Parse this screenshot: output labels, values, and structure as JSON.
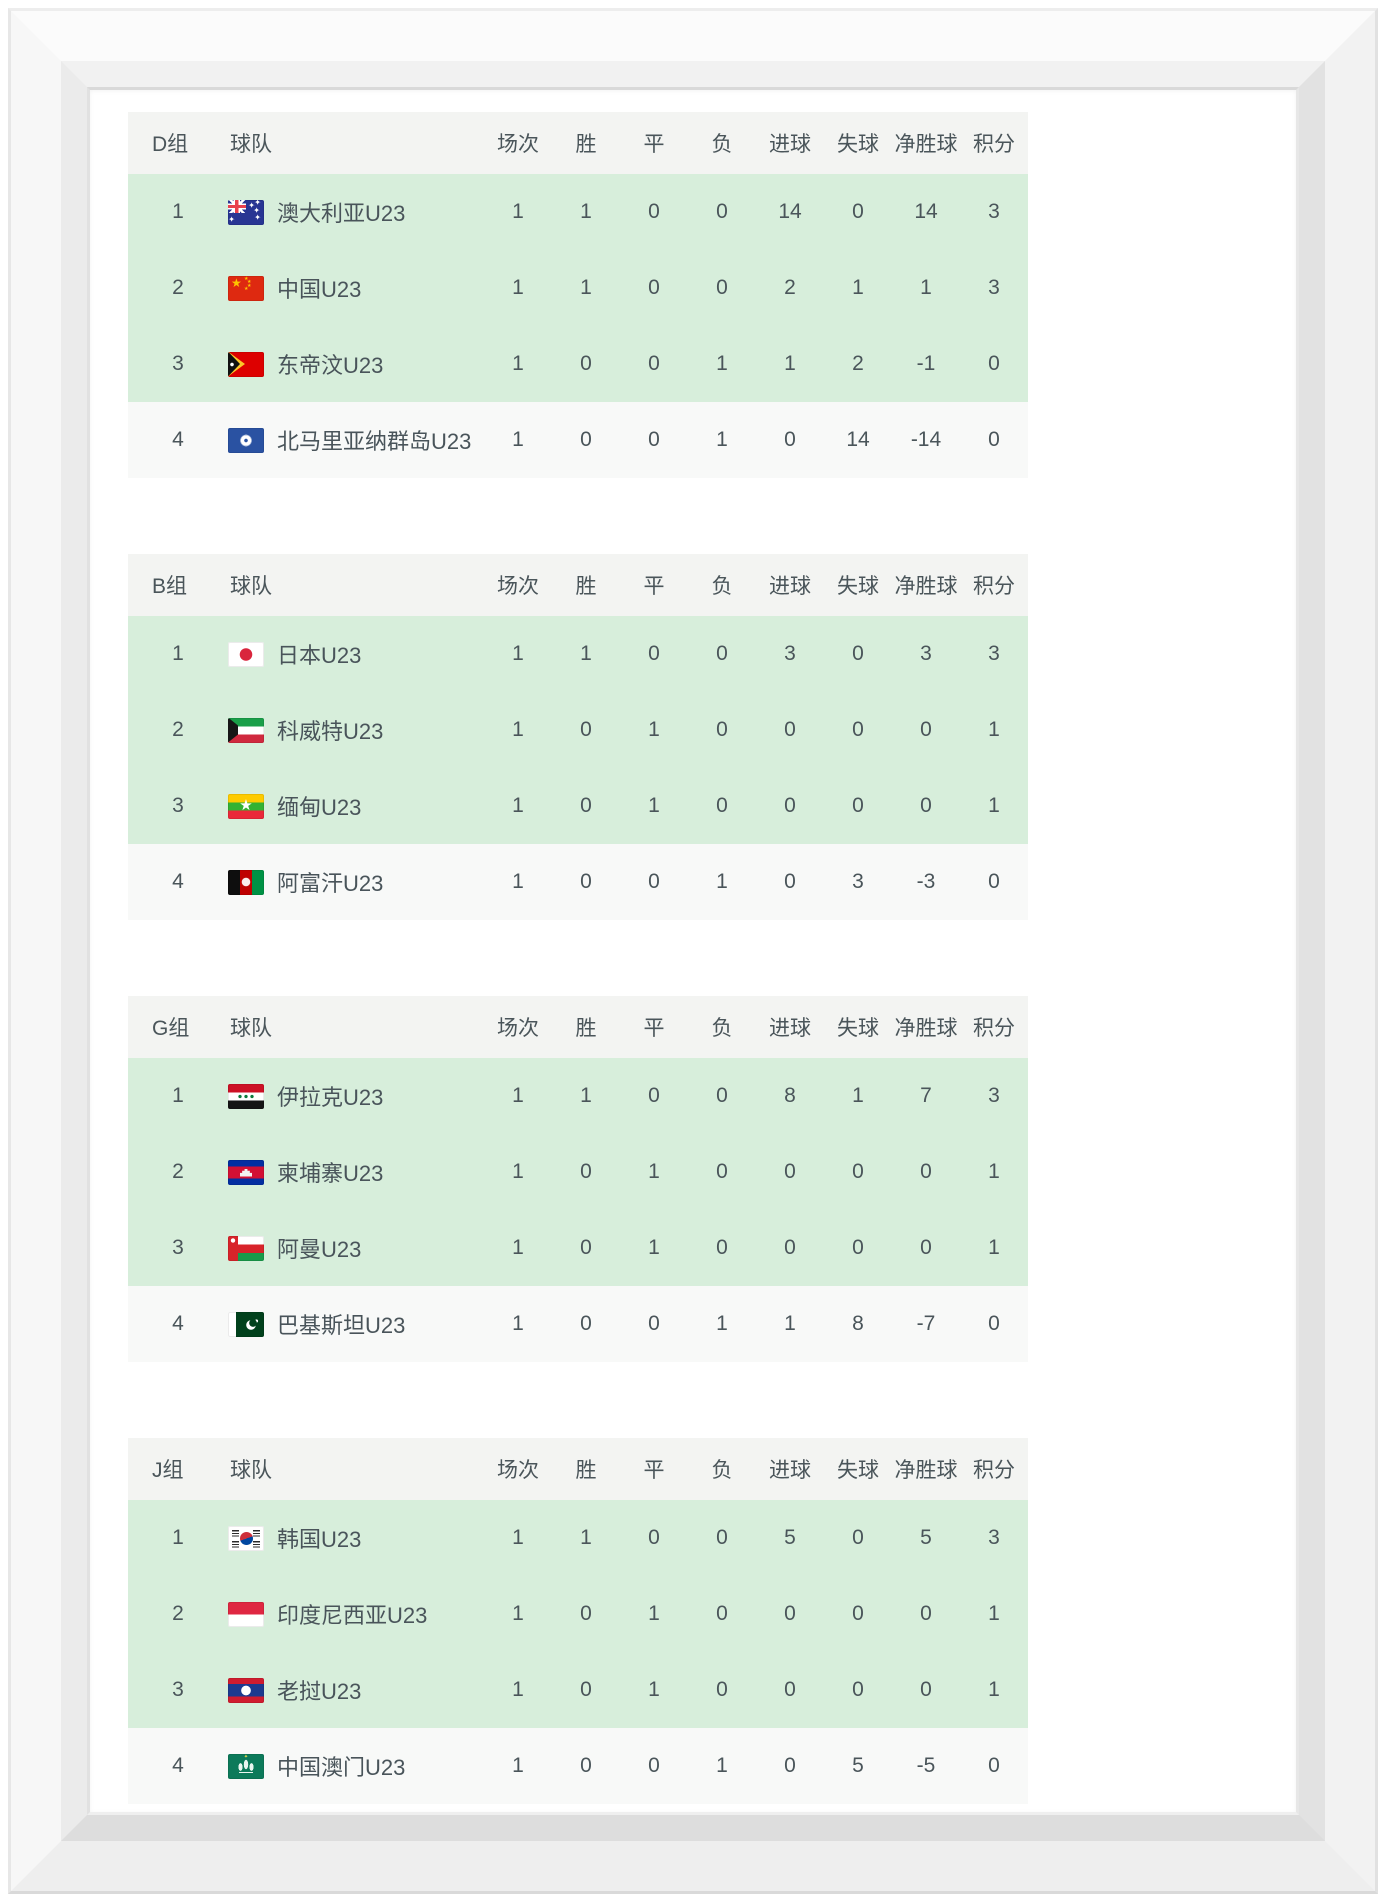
{
  "colors": {
    "row_highlight": "#d7eedb",
    "row_plain": "#f8f9f8",
    "header_bg": "#f3f4f2",
    "text": "#4a555a"
  },
  "columns": [
    "球队",
    "场次",
    "胜",
    "平",
    "负",
    "进球",
    "失球",
    "净胜球",
    "积分"
  ],
  "tables": [
    {
      "group_label": "D组",
      "rows": [
        {
          "rank": "1",
          "flag": "australia",
          "team": "澳大利亚U23",
          "values": [
            "1",
            "1",
            "0",
            "0",
            "14",
            "0",
            "14",
            "3"
          ],
          "highlighted": true
        },
        {
          "rank": "2",
          "flag": "china",
          "team": "中国U23",
          "values": [
            "1",
            "1",
            "0",
            "0",
            "2",
            "1",
            "1",
            "3"
          ],
          "highlighted": true
        },
        {
          "rank": "3",
          "flag": "east-timor",
          "team": "东帝汶U23",
          "values": [
            "1",
            "0",
            "0",
            "1",
            "1",
            "2",
            "-1",
            "0"
          ],
          "highlighted": true
        },
        {
          "rank": "4",
          "flag": "northern-mariana",
          "team": "北马里亚纳群岛U23",
          "values": [
            "1",
            "0",
            "0",
            "1",
            "0",
            "14",
            "-14",
            "0"
          ],
          "highlighted": false
        }
      ]
    },
    {
      "group_label": "B组",
      "rows": [
        {
          "rank": "1",
          "flag": "japan",
          "team": "日本U23",
          "values": [
            "1",
            "1",
            "0",
            "0",
            "3",
            "0",
            "3",
            "3"
          ],
          "highlighted": true
        },
        {
          "rank": "2",
          "flag": "kuwait",
          "team": "科威特U23",
          "values": [
            "1",
            "0",
            "1",
            "0",
            "0",
            "0",
            "0",
            "1"
          ],
          "highlighted": true
        },
        {
          "rank": "3",
          "flag": "myanmar",
          "team": "缅甸U23",
          "values": [
            "1",
            "0",
            "1",
            "0",
            "0",
            "0",
            "0",
            "1"
          ],
          "highlighted": true
        },
        {
          "rank": "4",
          "flag": "afghanistan",
          "team": "阿富汗U23",
          "values": [
            "1",
            "0",
            "0",
            "1",
            "0",
            "3",
            "-3",
            "0"
          ],
          "highlighted": false
        }
      ]
    },
    {
      "group_label": "G组",
      "rows": [
        {
          "rank": "1",
          "flag": "iraq",
          "team": "伊拉克U23",
          "values": [
            "1",
            "1",
            "0",
            "0",
            "8",
            "1",
            "7",
            "3"
          ],
          "highlighted": true
        },
        {
          "rank": "2",
          "flag": "cambodia",
          "team": "柬埔寨U23",
          "values": [
            "1",
            "0",
            "1",
            "0",
            "0",
            "0",
            "0",
            "1"
          ],
          "highlighted": true
        },
        {
          "rank": "3",
          "flag": "oman",
          "team": "阿曼U23",
          "values": [
            "1",
            "0",
            "1",
            "0",
            "0",
            "0",
            "0",
            "1"
          ],
          "highlighted": true
        },
        {
          "rank": "4",
          "flag": "pakistan",
          "team": "巴基斯坦U23",
          "values": [
            "1",
            "0",
            "0",
            "1",
            "1",
            "8",
            "-7",
            "0"
          ],
          "highlighted": false
        }
      ]
    },
    {
      "group_label": "J组",
      "rows": [
        {
          "rank": "1",
          "flag": "south-korea",
          "team": "韩国U23",
          "values": [
            "1",
            "1",
            "0",
            "0",
            "5",
            "0",
            "5",
            "3"
          ],
          "highlighted": true
        },
        {
          "rank": "2",
          "flag": "indonesia",
          "team": "印度尼西亚U23",
          "values": [
            "1",
            "0",
            "1",
            "0",
            "0",
            "0",
            "0",
            "1"
          ],
          "highlighted": true
        },
        {
          "rank": "3",
          "flag": "laos",
          "team": "老挝U23",
          "values": [
            "1",
            "0",
            "1",
            "0",
            "0",
            "0",
            "0",
            "1"
          ],
          "highlighted": true
        },
        {
          "rank": "4",
          "flag": "macau",
          "team": "中国澳门U23",
          "values": [
            "1",
            "0",
            "0",
            "1",
            "0",
            "5",
            "-5",
            "0"
          ],
          "highlighted": false
        }
      ]
    }
  ]
}
